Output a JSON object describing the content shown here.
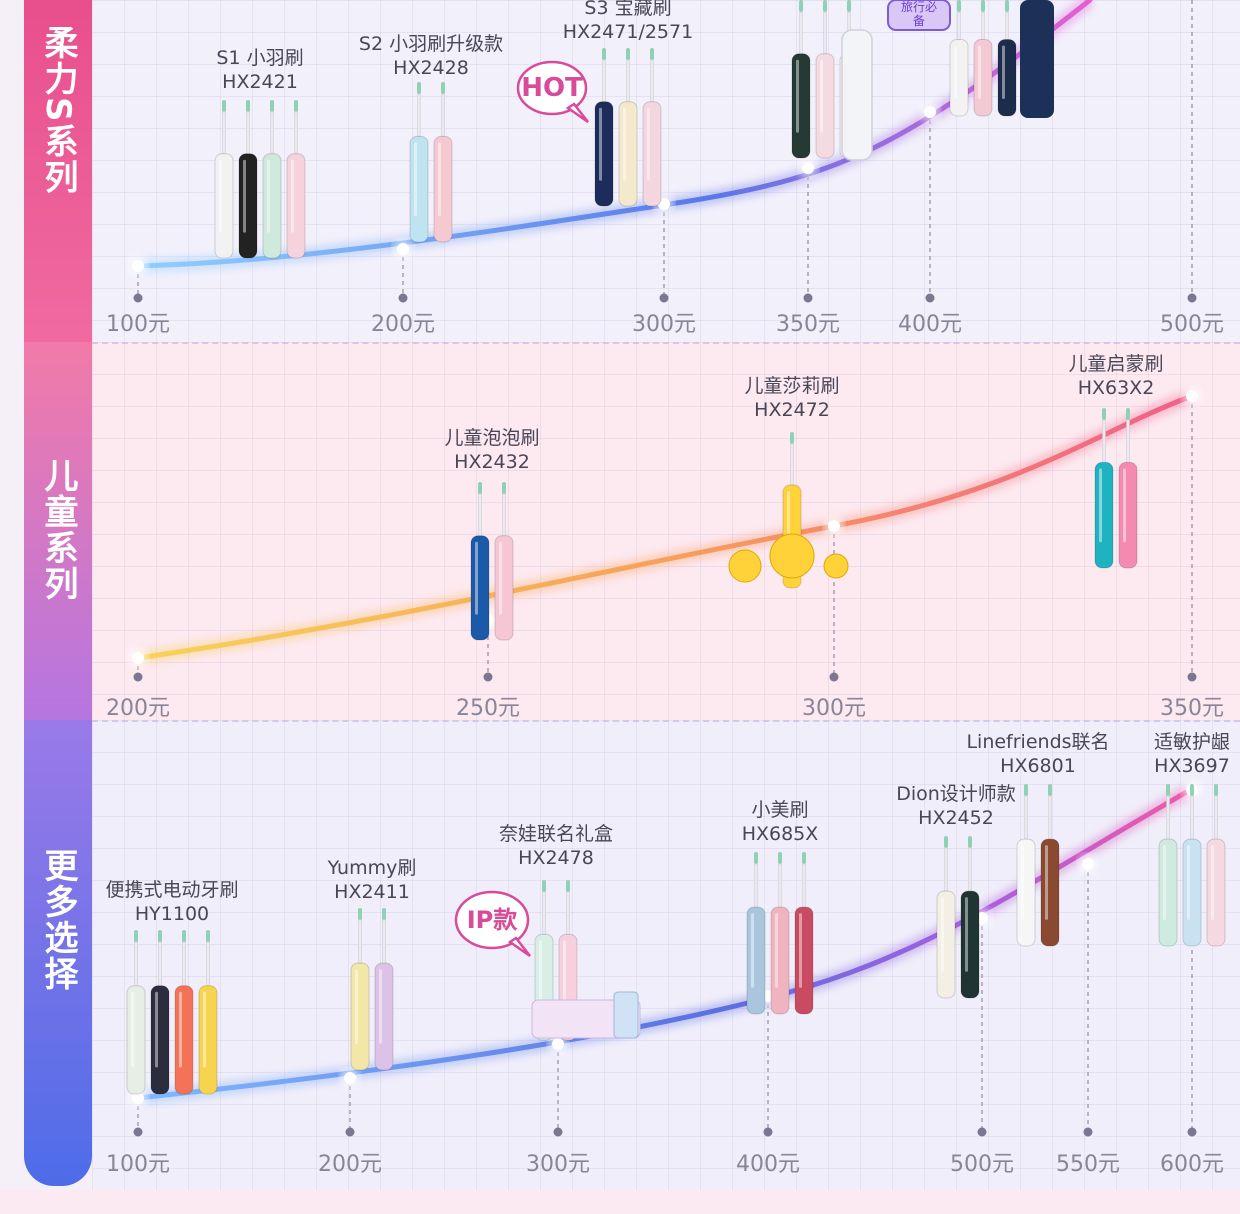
{
  "sections": [
    {
      "title": "柔力S系列",
      "title_chars": [
        "柔",
        "力",
        "S",
        "系",
        "列"
      ],
      "color_top": "#e84f8c",
      "color_bottom": "#f06aa0",
      "curve_color_start": "#7fb9ff",
      "curve_color_end": "#e35fd1",
      "prices": [
        "100元",
        "200元",
        "300元",
        "350元",
        "400元",
        "500元"
      ],
      "products": [
        {
          "name": "S1 小羽刷",
          "model": "HX2421",
          "colors": [
            "#f2f2f2",
            "#222222",
            "#cfe9dd",
            "#f6d3dc"
          ]
        },
        {
          "name": "S2 小羽刷升级款",
          "model": "HX2428",
          "colors": [
            "#bfe3f0",
            "#f5c9d1"
          ]
        },
        {
          "name": "S3 宝藏刷",
          "model": "HX2471/2571",
          "colors": [
            "#1c2d5b",
            "#f4e9cc",
            "#f3d6df"
          ]
        },
        {
          "name": "",
          "model": "",
          "colors": [
            "#253a33",
            "#f4dbe1",
            "#f6eef3"
          ]
        },
        {
          "name": "",
          "model": "",
          "colors": [
            "#f2f2f2",
            "#f3c9d3",
            "#1c2d4c",
            "#20365c"
          ]
        }
      ],
      "badge": "HOT",
      "badge_travel": "旅行必备"
    },
    {
      "title": "儿童系列",
      "title_chars": [
        "儿",
        "童",
        "系",
        "列"
      ],
      "color_top": "#f27aa8",
      "color_bottom": "#b576e0",
      "prices": [
        "200元",
        "250元",
        "300元",
        "350元"
      ],
      "products": [
        {
          "name": "儿童泡泡刷",
          "model": "HX2432",
          "colors": [
            "#1a5aa8",
            "#f6c6d5"
          ]
        },
        {
          "name": "儿童莎莉刷",
          "model": "HX2472",
          "colors": [
            "#ffd23a"
          ]
        },
        {
          "name": "儿童启蒙刷",
          "model": "HX63X2",
          "colors": [
            "#1fb3c1",
            "#f48ab0"
          ]
        }
      ]
    },
    {
      "title": "更多选择",
      "title_chars": [
        "更",
        "多",
        "选",
        "择"
      ],
      "color_top": "#9a7ae8",
      "color_bottom": "#4e6ce8",
      "prices": [
        "100元",
        "200元",
        "300元",
        "400元",
        "500元",
        "550元",
        "600元"
      ],
      "products": [
        {
          "name": "便携式电动牙刷",
          "model": "HY1100",
          "colors": [
            "#e6efe6",
            "#2b2d3f",
            "#f47358",
            "#f7d44e"
          ]
        },
        {
          "name": "Yummy刷",
          "model": "HX2411",
          "colors": [
            "#f3e7a8",
            "#dcc2e6"
          ]
        },
        {
          "name": "奈娃联名礼盒",
          "model": "HX2478",
          "colors": [
            "#d8efe7",
            "#f6d1dd"
          ]
        },
        {
          "name": "小美刷",
          "model": "HX685X",
          "colors": [
            "#a9c6dc",
            "#efb4c0",
            "#c94b61"
          ]
        },
        {
          "name": "Dion设计师款",
          "model": "HX2452",
          "colors": [
            "#f3efe4",
            "#203533"
          ]
        },
        {
          "name": "Linefriends联名",
          "model": "HX6801",
          "colors": [
            "#f6f6f6",
            "#8a4a32"
          ]
        },
        {
          "name": "适敏护龈",
          "model": "HX3697",
          "colors": [
            "#cfeadf",
            "#c8e2f2",
            "#f6d8e0"
          ]
        }
      ],
      "badge": "IP款"
    }
  ]
}
